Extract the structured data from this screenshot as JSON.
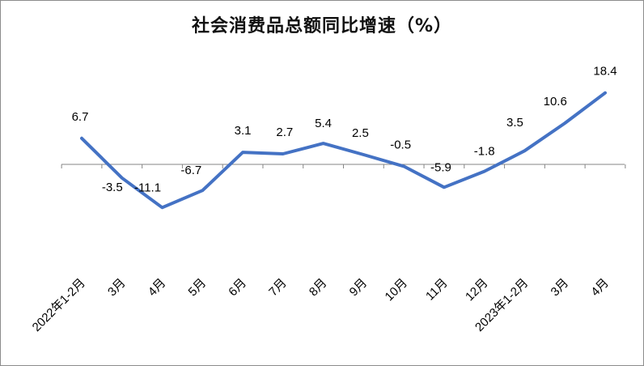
{
  "chart_data": {
    "type": "line",
    "title": "社会消费品总额同比增速（%）",
    "xlabel": "",
    "ylabel": "",
    "categories": [
      "2022年1-2月",
      "3月",
      "4月",
      "5月",
      "6月",
      "7月",
      "8月",
      "9月",
      "10月",
      "11月",
      "12月",
      "2023年1-2月",
      "3月",
      "4月"
    ],
    "series": [
      {
        "values": [
          6.7,
          -3.5,
          -11.1,
          -6.7,
          3.1,
          2.7,
          5.4,
          2.5,
          -0.5,
          -5.9,
          -1.8,
          3.5,
          10.6,
          18.4
        ]
      }
    ],
    "data_labels": [
      "6.7",
      "-3.5",
      "-11.1",
      "-6.7",
      "3.1",
      "2.7",
      "5.4",
      "2.5",
      "-0.5",
      "-5.9",
      "-1.8",
      "3.5",
      "10.6",
      "18.4"
    ],
    "ylim": [
      -11.1,
      18.4
    ],
    "grid": false,
    "legend": "none",
    "line_color": "#4472C4"
  }
}
